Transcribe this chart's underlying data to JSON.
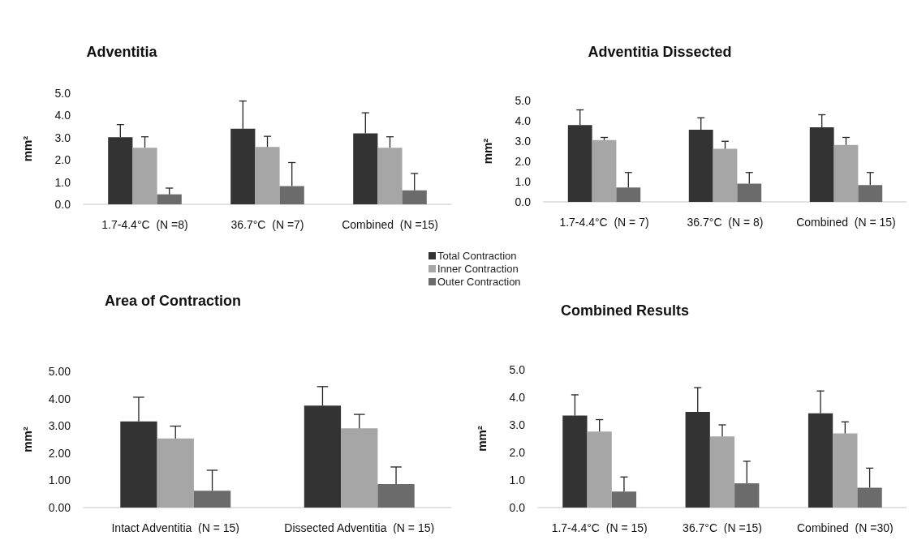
{
  "chart_data": [
    {
      "type": "bar",
      "title": "Adventitia",
      "ylabel": "mm²",
      "categories": [
        "1.7-4.4°C  (N =8)",
        "36.7°C  (N =7)",
        "Combined  (N =15)"
      ],
      "ylim": [
        0,
        5
      ],
      "yticks": [
        {
          "value": 0,
          "label": "0.0"
        },
        {
          "value": 1,
          "label": "1.0"
        },
        {
          "value": 2,
          "label": "2.0"
        },
        {
          "value": 3,
          "label": "3.0"
        },
        {
          "value": 4,
          "label": "4.0"
        },
        {
          "value": 5,
          "label": "5.0"
        }
      ],
      "legend": "bottom right",
      "series": [
        {
          "name": "Total Contraction",
          "color": "#333333",
          "values": [
            3.02,
            3.4,
            3.19
          ],
          "errors": [
            [
              3.02,
              3.59
            ],
            [
              3.4,
              4.65
            ],
            [
              3.19,
              4.12
            ]
          ]
        },
        {
          "name": "Inner Contraction",
          "color": "#a6a6a6",
          "values": [
            2.55,
            2.58,
            2.55
          ],
          "errors": [
            [
              2.55,
              3.04
            ],
            [
              2.58,
              3.06
            ],
            [
              2.55,
              3.04
            ]
          ]
        },
        {
          "name": "Outer Contraction",
          "color": "#6b6b6b",
          "values": [
            0.45,
            0.82,
            0.63
          ],
          "errors": [
            [
              0.45,
              0.73
            ],
            [
              0.82,
              1.88
            ],
            [
              0.63,
              1.39
            ]
          ]
        }
      ]
    },
    {
      "type": "bar",
      "title": "Adventitia Dissected",
      "ylabel": "mm²",
      "categories": [
        "1.7-4.4°C  (N = 7)",
        "36.7°C  (N = 8)",
        "Combined  (N = 15)"
      ],
      "ylim": [
        0,
        5
      ],
      "yticks": [
        {
          "value": 0,
          "label": "0.0"
        },
        {
          "value": 1,
          "label": "1.0"
        },
        {
          "value": 2,
          "label": "2.0"
        },
        {
          "value": 3,
          "label": "3.0"
        },
        {
          "value": 4,
          "label": "4.0"
        },
        {
          "value": 5,
          "label": "5.0"
        }
      ],
      "series": [
        {
          "color": "#333333",
          "values": [
            3.79,
            3.56,
            3.68
          ],
          "errors": [
            [
              3.79,
              4.54
            ],
            [
              3.56,
              4.15
            ],
            [
              3.68,
              4.3
            ]
          ]
        },
        {
          "color": "#a6a6a6",
          "values": [
            3.05,
            2.62,
            2.81
          ],
          "errors": [
            [
              3.05,
              3.18
            ],
            [
              2.62,
              2.99
            ],
            [
              2.81,
              3.18
            ]
          ]
        },
        {
          "color": "#6b6b6b",
          "values": [
            0.71,
            0.9,
            0.83
          ],
          "errors": [
            [
              0.71,
              1.45
            ],
            [
              0.9,
              1.45
            ],
            [
              0.83,
              1.45
            ]
          ]
        }
      ]
    },
    {
      "type": "bar",
      "title": "Area of Contraction",
      "ylabel": "mm²",
      "categories": [
        "Intact Adventitia  (N = 15)",
        "Dissected Adventitia  (N = 15)"
      ],
      "ylim": [
        0,
        5
      ],
      "yticks": [
        {
          "value": 0,
          "label": "0.00"
        },
        {
          "value": 1,
          "label": "1.00"
        },
        {
          "value": 2,
          "label": "2.00"
        },
        {
          "value": 3,
          "label": "3.00"
        },
        {
          "value": 4,
          "label": "4.00"
        },
        {
          "value": 5,
          "label": "5.00"
        }
      ],
      "series": [
        {
          "color": "#333333",
          "values": [
            3.16,
            3.74
          ],
          "errors": [
            [
              3.16,
              4.05
            ],
            [
              3.74,
              4.44
            ]
          ]
        },
        {
          "color": "#a6a6a6",
          "values": [
            2.54,
            2.91
          ],
          "errors": [
            [
              2.54,
              2.99
            ],
            [
              2.91,
              3.42
            ]
          ]
        },
        {
          "color": "#6b6b6b",
          "values": [
            0.62,
            0.86
          ],
          "errors": [
            [
              0.62,
              1.37
            ],
            [
              0.86,
              1.49
            ]
          ]
        }
      ]
    },
    {
      "type": "bar",
      "title": "Combined Results",
      "ylabel": "mm²",
      "categories": [
        "1.7-4.4°C  (N = 15)",
        "36.7°C  (N =15)",
        "Combined  (N =30)"
      ],
      "ylim": [
        0,
        5
      ],
      "yticks": [
        {
          "value": 0,
          "label": "0.0"
        },
        {
          "value": 1,
          "label": "1.0"
        },
        {
          "value": 2,
          "label": "2.0"
        },
        {
          "value": 3,
          "label": "3.0"
        },
        {
          "value": 4,
          "label": "4.0"
        },
        {
          "value": 5,
          "label": "5.0"
        }
      ],
      "series": [
        {
          "color": "#333333",
          "values": [
            3.34,
            3.47,
            3.42
          ],
          "errors": [
            [
              3.34,
              4.09
            ],
            [
              3.47,
              4.35
            ],
            [
              3.42,
              4.23
            ]
          ]
        },
        {
          "color": "#a6a6a6",
          "values": [
            2.76,
            2.58,
            2.69
          ],
          "errors": [
            [
              2.76,
              3.19
            ],
            [
              2.58,
              3.0
            ],
            [
              2.69,
              3.11
            ]
          ]
        },
        {
          "color": "#6b6b6b",
          "values": [
            0.58,
            0.88,
            0.72
          ],
          "errors": [
            [
              0.58,
              1.11
            ],
            [
              0.88,
              1.68
            ],
            [
              0.72,
              1.43
            ]
          ]
        }
      ]
    }
  ]
}
